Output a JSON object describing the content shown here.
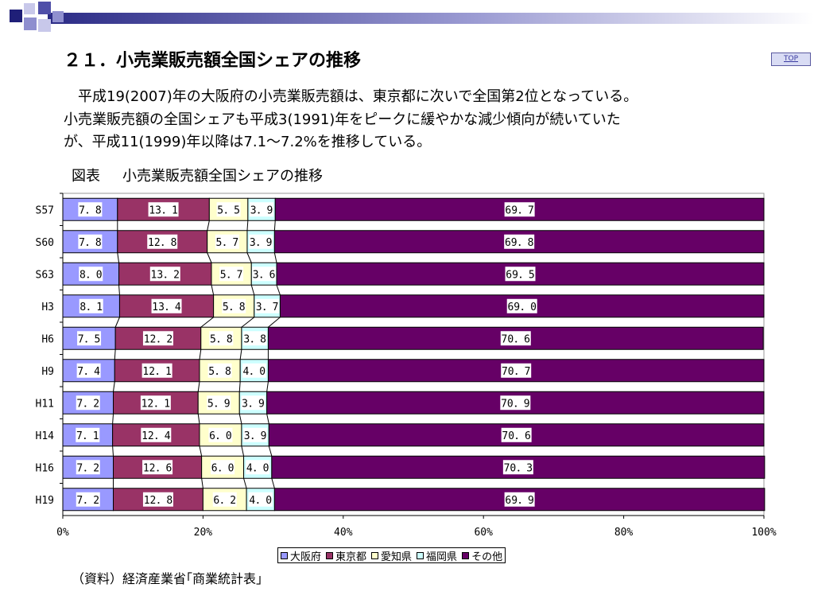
{
  "title": "２１．小売業販売額全国シェアの推移",
  "top_link": "TOP",
  "intro_lines": [
    "　平成19(2007)年の大阪府の小売業販売額は、東京都に次いで全国第2位となっている。",
    "小売業販売額の全国シェアも平成3(1991)年をピークに緩やかな減少傾向が続いていた",
    "が、平成11(1999)年以降は7.1～7.2%を推移している。"
  ],
  "caption": {
    "label": "図表",
    "title": "小売業販売額全国シェアの推移"
  },
  "source_note": "（資料）経済産業省｢商業統計表｣",
  "banner_colors": [
    "#1f1f78",
    "#4f4fa8",
    "#8f8fcf",
    "#c8c8ea"
  ],
  "chart_data": {
    "type": "bar",
    "orientation": "horizontal",
    "stacked": "percent",
    "categories": [
      "S57",
      "S60",
      "S63",
      "H3",
      "H6",
      "H9",
      "H11",
      "H14",
      "H16",
      "H19"
    ],
    "series": [
      {
        "name": "大阪府",
        "color": "#9999ff",
        "values": [
          7.8,
          7.8,
          8.0,
          8.1,
          7.5,
          7.4,
          7.2,
          7.1,
          7.2,
          7.2
        ]
      },
      {
        "name": "東京都",
        "color": "#993366",
        "values": [
          13.1,
          12.8,
          13.2,
          13.4,
          12.2,
          12.1,
          12.1,
          12.4,
          12.6,
          12.8
        ]
      },
      {
        "name": "愛知県",
        "color": "#ffffcc",
        "values": [
          5.5,
          5.7,
          5.7,
          5.8,
          5.8,
          5.8,
          5.9,
          6.0,
          6.0,
          6.2
        ]
      },
      {
        "name": "福岡県",
        "color": "#ccffff",
        "values": [
          3.9,
          3.9,
          3.6,
          3.7,
          3.8,
          4.0,
          3.9,
          3.9,
          4.0,
          4.0
        ]
      },
      {
        "name": "その他",
        "color": "#660066",
        "values": [
          69.7,
          69.8,
          69.5,
          69.0,
          70.6,
          70.7,
          70.9,
          70.6,
          70.3,
          69.9
        ]
      }
    ],
    "x_ticks": [
      "0%",
      "20%",
      "40%",
      "60%",
      "80%",
      "100%"
    ],
    "xlim": [
      0,
      100
    ],
    "legend": "bottom",
    "grid": false
  }
}
